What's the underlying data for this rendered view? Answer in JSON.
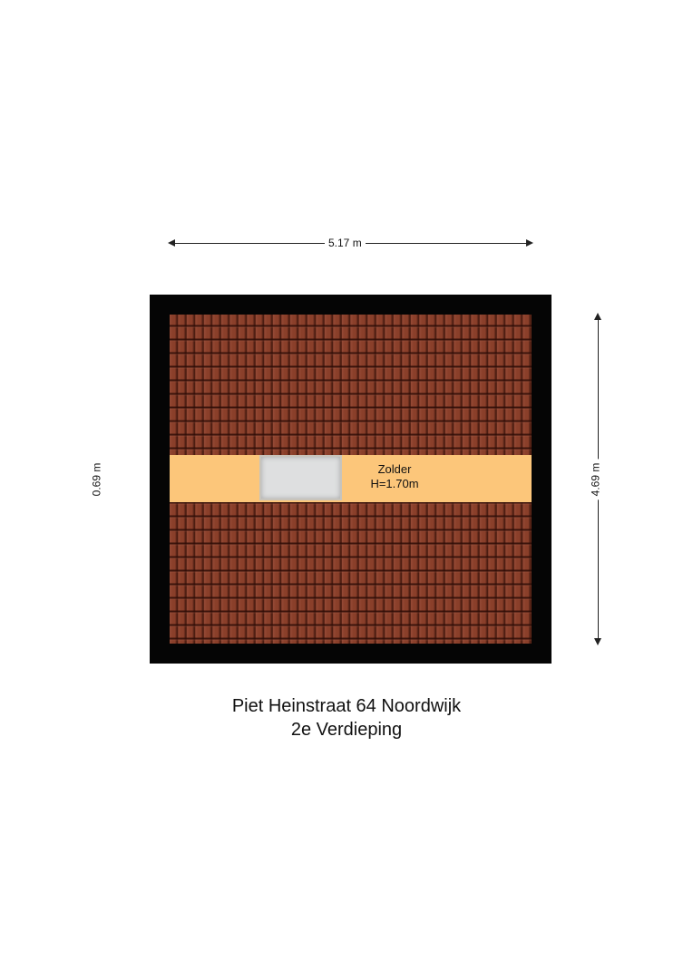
{
  "dimensions": {
    "width": "5.17 m",
    "height_right": "4.69 m",
    "height_left": "0.69 m"
  },
  "room": {
    "name": "Zolder",
    "height": "H=1.70m"
  },
  "caption": {
    "address": "Piet Heinstraat 64 Noordwijk",
    "floor": "2e Verdieping"
  },
  "colors": {
    "wall": "#050505",
    "roof_tiles": "#8a3f2a",
    "room_band": "#fcc67a",
    "skylight": "#dedfe0"
  }
}
